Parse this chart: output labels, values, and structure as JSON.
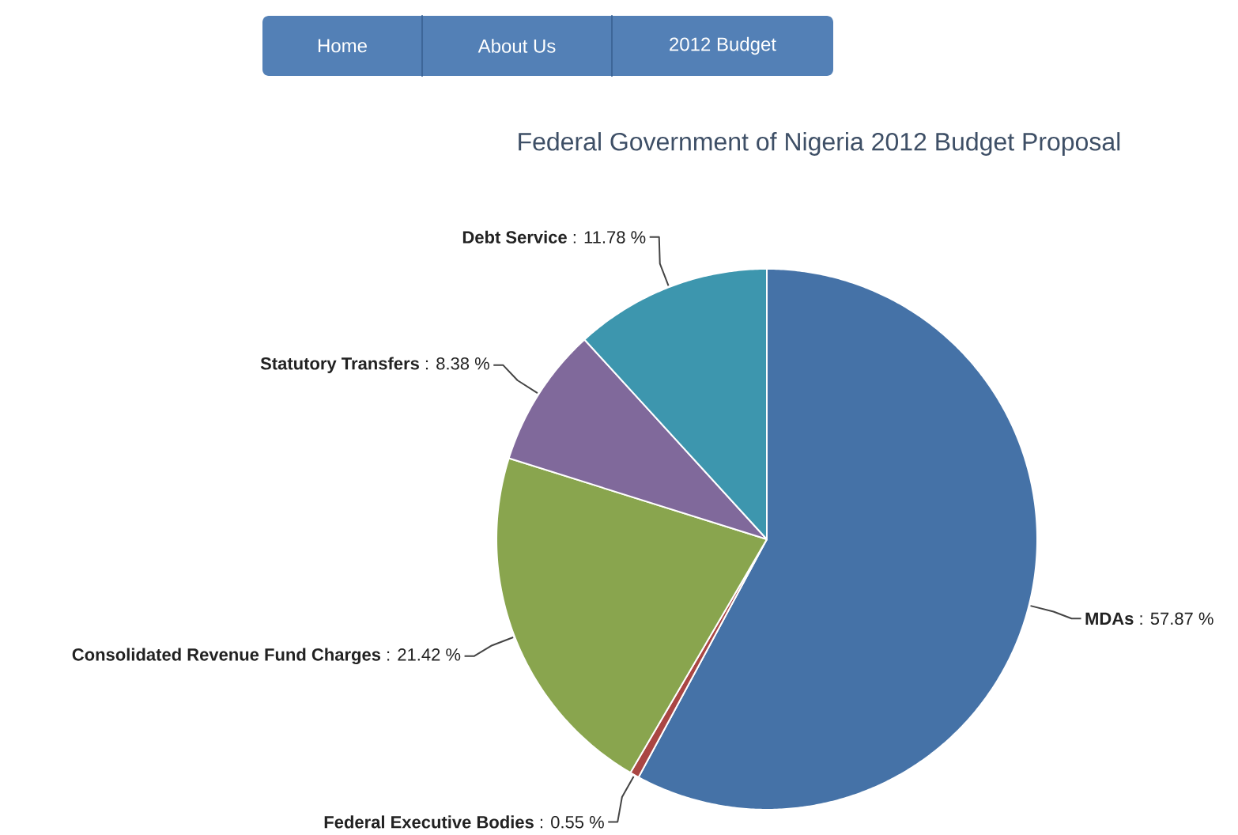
{
  "chart_data": {
    "type": "pie",
    "title": "Federal Government of Nigeria 2012 Budget Proposal",
    "categories": [
      "MDAs",
      "Federal Executive Bodies",
      "Consolidated Revenue Fund Charges",
      "Statutory Transfers",
      "Debt Service"
    ],
    "values": [
      57.87,
      0.55,
      21.42,
      8.38,
      11.78
    ],
    "colors": [
      "#4572a7",
      "#aa4643",
      "#89a54e",
      "#80699b",
      "#3d96ae"
    ],
    "value_labels": [
      ": 57.87 %",
      ": 0.55 %",
      ": 21.42 %",
      ": 8.38 %",
      ": 11.78 %"
    ],
    "annotations": [
      "Home",
      "About Us",
      "2012 Budget"
    ]
  }
}
